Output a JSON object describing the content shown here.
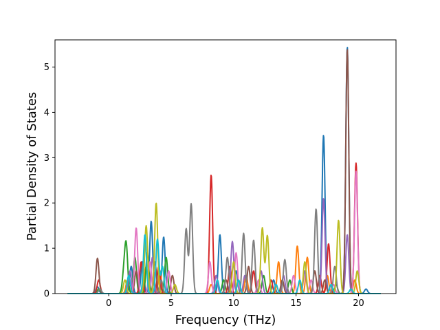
{
  "chart_data": {
    "type": "line",
    "title": "",
    "xlabel": "Frequency (THz)",
    "ylabel": "Partial Density of States",
    "xlim": [
      -4.3,
      23.0
    ],
    "ylim": [
      0,
      5.6
    ],
    "xticks": [
      0,
      5,
      10,
      15,
      20
    ],
    "yticks": [
      0,
      1,
      2,
      3,
      4,
      5
    ],
    "grid": false,
    "legend": "none",
    "colors": [
      "#1f77b4",
      "#ff7f0e",
      "#2ca02c",
      "#d62728",
      "#9467bd",
      "#8c564b",
      "#e377c2",
      "#7f7f7f",
      "#bcbd22",
      "#17becf"
    ],
    "series": [
      {
        "color": "#1f77b4",
        "peaks": [
          [
            -0.9,
            0.15
          ],
          [
            1.8,
            0.6
          ],
          [
            2.7,
            0.7
          ],
          [
            3.4,
            1.6
          ],
          [
            4.4,
            1.25
          ],
          [
            8.9,
            1.3
          ],
          [
            10.2,
            0.5
          ],
          [
            13.2,
            0.3
          ],
          [
            17.2,
            3.5
          ],
          [
            19.1,
            5.45
          ],
          [
            20.6,
            0.1
          ]
        ]
      },
      {
        "color": "#ff7f0e",
        "peaks": [
          [
            1.5,
            0.3
          ],
          [
            3.0,
            0.6
          ],
          [
            4.1,
            0.5
          ],
          [
            8.2,
            0.2
          ],
          [
            11.0,
            0.4
          ],
          [
            13.6,
            0.7
          ],
          [
            15.1,
            1.05
          ],
          [
            15.9,
            0.8
          ],
          [
            17.5,
            0.4
          ],
          [
            19.7,
            0.3
          ]
        ]
      },
      {
        "color": "#2ca02c",
        "peaks": [
          [
            -0.8,
            0.1
          ],
          [
            1.2,
            0.4
          ],
          [
            1.4,
            1.05
          ],
          [
            2.1,
            0.8
          ],
          [
            3.1,
            0.9
          ],
          [
            4.6,
            0.8
          ],
          [
            9.2,
            0.3
          ],
          [
            12.4,
            0.4
          ],
          [
            14.5,
            0.3
          ],
          [
            18.2,
            0.2
          ]
        ]
      },
      {
        "color": "#d62728",
        "peaks": [
          [
            -0.8,
            0.3
          ],
          [
            2.6,
            0.7
          ],
          [
            4.0,
            0.6
          ],
          [
            8.2,
            2.62
          ],
          [
            9.7,
            0.6
          ],
          [
            11.6,
            0.5
          ],
          [
            13.0,
            0.3
          ],
          [
            16.9,
            0.4
          ],
          [
            17.6,
            1.1
          ],
          [
            19.8,
            2.88
          ]
        ]
      },
      {
        "color": "#9467bd",
        "peaks": [
          [
            1.7,
            0.5
          ],
          [
            3.5,
            0.8
          ],
          [
            8.6,
            0.4
          ],
          [
            9.9,
            1.15
          ],
          [
            10.9,
            0.4
          ],
          [
            12.2,
            0.5
          ],
          [
            14.0,
            0.4
          ],
          [
            15.7,
            0.5
          ],
          [
            17.2,
            2.1
          ],
          [
            19.1,
            1.3
          ]
        ]
      },
      {
        "color": "#8c564b",
        "peaks": [
          [
            -0.9,
            0.78
          ],
          [
            2.2,
            0.5
          ],
          [
            3.7,
            0.7
          ],
          [
            5.1,
            0.4
          ],
          [
            9.4,
            0.3
          ],
          [
            11.2,
            0.6
          ],
          [
            13.9,
            0.3
          ],
          [
            16.5,
            0.5
          ],
          [
            17.3,
            0.3
          ],
          [
            19.1,
            5.4
          ]
        ]
      },
      {
        "color": "#e377c2",
        "peaks": [
          [
            2.2,
            1.45
          ],
          [
            3.3,
            0.7
          ],
          [
            4.8,
            0.5
          ],
          [
            8.1,
            0.7
          ],
          [
            10.2,
            0.9
          ],
          [
            12.0,
            0.3
          ],
          [
            14.8,
            0.4
          ],
          [
            16.2,
            0.3
          ],
          [
            18.0,
            0.2
          ],
          [
            19.8,
            2.7
          ]
        ]
      },
      {
        "color": "#7f7f7f",
        "peaks": [
          [
            -0.7,
            0.1
          ],
          [
            4.2,
            0.3
          ],
          [
            6.2,
            1.43
          ],
          [
            6.6,
            1.98
          ],
          [
            9.5,
            0.8
          ],
          [
            10.8,
            1.33
          ],
          [
            11.6,
            1.18
          ],
          [
            14.1,
            0.75
          ],
          [
            16.6,
            1.87
          ],
          [
            18.1,
            0.6
          ]
        ]
      },
      {
        "color": "#bcbd22",
        "peaks": [
          [
            1.3,
            0.3
          ],
          [
            3.0,
            1.5
          ],
          [
            3.8,
            2.0
          ],
          [
            5.3,
            0.2
          ],
          [
            10.0,
            0.7
          ],
          [
            12.3,
            1.45
          ],
          [
            12.7,
            1.28
          ],
          [
            15.7,
            0.7
          ],
          [
            18.4,
            1.62
          ],
          [
            19.9,
            0.5
          ]
        ]
      },
      {
        "color": "#17becf",
        "peaks": [
          [
            1.6,
            0.4
          ],
          [
            2.9,
            1.3
          ],
          [
            3.9,
            1.2
          ],
          [
            4.3,
            0.6
          ],
          [
            8.7,
            0.3
          ],
          [
            10.4,
            0.3
          ],
          [
            13.4,
            0.2
          ],
          [
            15.3,
            0.3
          ],
          [
            17.8,
            0.2
          ],
          [
            19.4,
            0.1
          ]
        ]
      }
    ]
  }
}
